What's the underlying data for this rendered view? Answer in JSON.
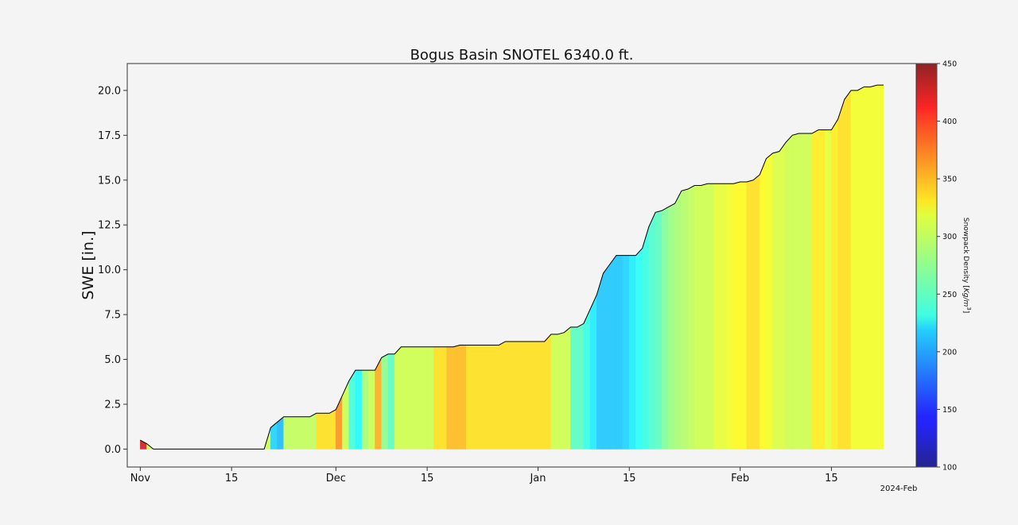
{
  "chart_data": {
    "type": "area",
    "title": "Bogus Basin SNOTEL 6340.0 ft.",
    "ylabel": "SWE [in.]",
    "xlabel": "",
    "x_range": [
      "2023-10-30",
      "2024-02-28"
    ],
    "ylim": [
      -1.0,
      21.5
    ],
    "yticks": [
      0.0,
      2.5,
      5.0,
      7.5,
      10.0,
      12.5,
      15.0,
      17.5,
      20.0
    ],
    "ytick_labels": [
      "0.0",
      "2.5",
      "5.0",
      "7.5",
      "10.0",
      "12.5",
      "15.0",
      "17.5",
      "20.0"
    ],
    "xticks": [
      {
        "date": "2023-11-01",
        "label": "Nov"
      },
      {
        "date": "2023-11-15",
        "label": "15"
      },
      {
        "date": "2023-12-01",
        "label": "Dec"
      },
      {
        "date": "2023-12-15",
        "label": "15"
      },
      {
        "date": "2024-01-01",
        "label": "Jan"
      },
      {
        "date": "2024-01-15",
        "label": "15"
      },
      {
        "date": "2024-02-01",
        "label": "Feb"
      },
      {
        "date": "2024-02-15",
        "label": "15"
      }
    ],
    "offset_label": "2024-Feb",
    "grid": false,
    "series": [
      {
        "dates": [
          "2023-11-01",
          "2023-11-02",
          "2023-11-03",
          "2023-11-20",
          "2023-11-21",
          "2023-11-22",
          "2023-11-23",
          "2023-11-24",
          "2023-11-25",
          "2023-11-26",
          "2023-11-27",
          "2023-11-28",
          "2023-11-29",
          "2023-11-30",
          "2023-12-01",
          "2023-12-02",
          "2023-12-03",
          "2023-12-04",
          "2023-12-05",
          "2023-12-06",
          "2023-12-07",
          "2023-12-08",
          "2023-12-09",
          "2023-12-10",
          "2023-12-11",
          "2023-12-12",
          "2023-12-13",
          "2023-12-14",
          "2023-12-15",
          "2023-12-16",
          "2023-12-17",
          "2023-12-18",
          "2023-12-19",
          "2023-12-20",
          "2023-12-21",
          "2023-12-22",
          "2023-12-23",
          "2023-12-24",
          "2023-12-25",
          "2023-12-26",
          "2023-12-27",
          "2023-12-28",
          "2023-12-29",
          "2023-12-30",
          "2023-12-31",
          "2024-01-01",
          "2024-01-02",
          "2024-01-03",
          "2024-01-04",
          "2024-01-05",
          "2024-01-06",
          "2024-01-07",
          "2024-01-08",
          "2024-01-09",
          "2024-01-10",
          "2024-01-11",
          "2024-01-12",
          "2024-01-13",
          "2024-01-14",
          "2024-01-15",
          "2024-01-16",
          "2024-01-17",
          "2024-01-18",
          "2024-01-19",
          "2024-01-20",
          "2024-01-21",
          "2024-01-22",
          "2024-01-23",
          "2024-01-24",
          "2024-01-25",
          "2024-01-26",
          "2024-01-27",
          "2024-01-28",
          "2024-01-29",
          "2024-01-30",
          "2024-01-31",
          "2024-02-01",
          "2024-02-02",
          "2024-02-03",
          "2024-02-04",
          "2024-02-05",
          "2024-02-06",
          "2024-02-07",
          "2024-02-08",
          "2024-02-09",
          "2024-02-10",
          "2024-02-11",
          "2024-02-12",
          "2024-02-13",
          "2024-02-14",
          "2024-02-15",
          "2024-02-16",
          "2024-02-17",
          "2024-02-18",
          "2024-02-19",
          "2024-02-20",
          "2024-02-21",
          "2024-02-22",
          "2024-02-23"
        ],
        "swe": [
          0.5,
          0.3,
          0.0,
          0.0,
          1.2,
          1.5,
          1.8,
          1.8,
          1.8,
          1.8,
          1.8,
          2.0,
          2.0,
          2.0,
          2.2,
          3.0,
          3.8,
          4.4,
          4.4,
          4.4,
          4.4,
          5.1,
          5.3,
          5.3,
          5.7,
          5.7,
          5.7,
          5.7,
          5.7,
          5.7,
          5.7,
          5.7,
          5.7,
          5.8,
          5.8,
          5.8,
          5.8,
          5.8,
          5.8,
          5.8,
          6.0,
          6.0,
          6.0,
          6.0,
          6.0,
          6.0,
          6.0,
          6.4,
          6.4,
          6.5,
          6.8,
          6.8,
          7.0,
          7.8,
          8.6,
          9.8,
          10.3,
          10.8,
          10.8,
          10.8,
          10.8,
          11.2,
          12.4,
          13.2,
          13.3,
          13.5,
          13.7,
          14.4,
          14.5,
          14.7,
          14.7,
          14.8,
          14.8,
          14.8,
          14.8,
          14.8,
          14.9,
          14.9,
          15.0,
          15.3,
          16.2,
          16.5,
          16.6,
          17.1,
          17.5,
          17.6,
          17.6,
          17.6,
          17.8,
          17.8,
          17.8,
          18.4,
          19.5,
          20.0,
          20.0,
          20.2,
          20.2,
          20.3,
          20.3
        ],
        "density": [
          440,
          300,
          300,
          300,
          215,
          205,
          295,
          295,
          295,
          295,
          295,
          330,
          330,
          330,
          360,
          300,
          245,
          230,
          285,
          300,
          350,
          275,
          255,
          300,
          300,
          300,
          300,
          300,
          300,
          330,
          330,
          345,
          345,
          345,
          330,
          330,
          330,
          330,
          330,
          330,
          330,
          330,
          330,
          330,
          330,
          330,
          330,
          300,
          300,
          300,
          255,
          255,
          240,
          225,
          210,
          210,
          210,
          210,
          215,
          225,
          235,
          240,
          250,
          255,
          270,
          280,
          285,
          290,
          295,
          300,
          300,
          300,
          310,
          310,
          315,
          320,
          320,
          330,
          330,
          320,
          315,
          305,
          305,
          300,
          300,
          300,
          300,
          325,
          325,
          310,
          325,
          330,
          330,
          315,
          315,
          315,
          315,
          315,
          315
        ]
      }
    ],
    "colorbar": {
      "label": "Snowpack Density [Kg/m³]",
      "label_text": "Snowpack Density [",
      "label_units": "Kg/m",
      "label_sup": "3",
      "label_close": "]",
      "min": 100,
      "max": 450,
      "ticks": [
        100,
        150,
        200,
        250,
        300,
        350,
        400,
        450
      ],
      "colormap": "jet"
    },
    "outline_color": "#000000"
  }
}
